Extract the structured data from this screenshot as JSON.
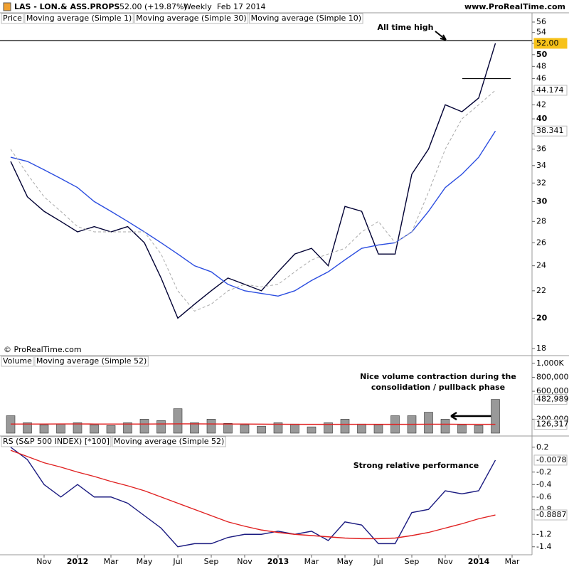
{
  "header": {
    "symbol": "LAS - LON.& ASS.PROPS",
    "quote": "52.00 (+19.87%)",
    "period": "Weekly",
    "date": "Feb 17 2014",
    "site": "www.ProRealTime.com"
  },
  "chart_data": [
    {
      "type": "line",
      "label": "Price",
      "log": true,
      "copyright": "© ProRealTime.com",
      "annotation": "All time high",
      "horizontal_lines": [
        52.5,
        46
      ],
      "ylim": [
        18,
        56
      ],
      "yticks": [
        18,
        20,
        22,
        24,
        26,
        28,
        30,
        32,
        34,
        36,
        38,
        40,
        42,
        44,
        46,
        48,
        50,
        52,
        54,
        56
      ],
      "series": [
        {
          "name": "Moving average (Simple 1)",
          "color": "#000033",
          "label_background": "#f7c21a",
          "values": [
            34.5,
            30.5,
            29,
            28,
            27,
            27.5,
            27,
            27.5,
            26,
            23,
            20,
            21,
            22,
            23,
            22.5,
            22,
            23.5,
            25,
            25.5,
            24,
            29.5,
            29,
            25,
            25,
            33,
            36,
            42,
            41,
            43,
            52,
            null
          ],
          "value_labels": [
            null,
            null,
            null,
            null,
            null,
            null,
            null,
            null,
            null,
            null,
            null,
            null,
            null,
            null,
            null,
            null,
            null,
            null,
            null,
            null,
            null,
            null,
            null,
            null,
            null,
            null,
            null,
            null,
            null,
            "52.00",
            null
          ]
        },
        {
          "name": "Moving average (Simple 30)",
          "color": "#2b4de0",
          "values": [
            35,
            34.5,
            33.5,
            32.5,
            31.5,
            30,
            29,
            28,
            27,
            26,
            25,
            24,
            23.5,
            22.5,
            22,
            21.8,
            21.6,
            22,
            22.8,
            23.5,
            24.5,
            25.5,
            25.8,
            26,
            27,
            29,
            31.5,
            33,
            35,
            38.341,
            null
          ]
        },
        {
          "name": "Moving average (Simple 10)",
          "color": "#aaaaaa",
          "dashed": true,
          "values": [
            36,
            33,
            30.5,
            29,
            27.5,
            27,
            27,
            27,
            27,
            25,
            22,
            20.5,
            21,
            22,
            22.5,
            22.3,
            22.5,
            23.5,
            24.5,
            25,
            25.5,
            27,
            28,
            26,
            27,
            31,
            36,
            40,
            42,
            44.174,
            null
          ]
        }
      ]
    },
    {
      "type": "bar",
      "ylim": [
        0,
        1100000
      ],
      "annotation": [
        "Nice volume contraction during the",
        "consolidation / pullback phase"
      ],
      "yticks": [
        {
          "value": 200000,
          "label": "200,000"
        },
        {
          "value": 600000,
          "label": "600,000"
        },
        {
          "value": 800000,
          "label": "800,000"
        },
        {
          "value": 1000000,
          "label": "1,000K"
        }
      ],
      "series": [
        {
          "name": "Volume",
          "type": "bar",
          "color": "#999999",
          "values": [
            250000,
            150000,
            120000,
            130000,
            150000,
            120000,
            110000,
            150000,
            200000,
            180000,
            350000,
            150000,
            200000,
            140000,
            120000,
            100000,
            150000,
            130000,
            90000,
            150000,
            200000,
            130000,
            120000,
            250000,
            250000,
            300000,
            200000,
            120000,
            110000,
            482989,
            null
          ],
          "value_labels": [
            null,
            null,
            null,
            null,
            null,
            null,
            null,
            null,
            null,
            null,
            null,
            null,
            null,
            null,
            null,
            null,
            null,
            null,
            null,
            null,
            null,
            null,
            null,
            null,
            null,
            null,
            null,
            null,
            null,
            "482,989",
            null
          ]
        },
        {
          "name": "Moving average (Simple 52)",
          "type": "line",
          "color": "#e02020",
          "values": [
            130000,
            130000,
            131000,
            132000,
            132000,
            131000,
            130000,
            130000,
            131000,
            132000,
            133000,
            133000,
            132000,
            131000,
            130000,
            129000,
            128000,
            127000,
            126000,
            126000,
            127000,
            127000,
            126000,
            126000,
            127000,
            128000,
            128000,
            127000,
            126000,
            126317,
            null
          ],
          "value_labels": [
            null,
            null,
            null,
            null,
            null,
            null,
            null,
            null,
            null,
            null,
            null,
            null,
            null,
            null,
            null,
            null,
            null,
            null,
            null,
            null,
            null,
            null,
            null,
            null,
            null,
            null,
            null,
            null,
            null,
            "126,317",
            null
          ]
        }
      ]
    },
    {
      "type": "line",
      "annotation": "Strong relative performance",
      "ylim": [
        -1.5,
        0.3
      ],
      "yticks": [
        -1.4,
        -1.2,
        -0.8,
        -0.6,
        -0.4,
        -0.2,
        0.2
      ],
      "categories": [
        null,
        null,
        "Nov",
        null,
        "2012",
        null,
        "Mar",
        null,
        "May",
        null,
        "Jul",
        null,
        "Sep",
        null,
        "Nov",
        null,
        "2013",
        null,
        "Mar",
        null,
        "May",
        null,
        "Jul",
        null,
        "Sep",
        null,
        "Nov",
        null,
        "2014",
        null,
        "Mar"
      ],
      "series": [
        {
          "name": "RS (S&P 500 INDEX) [*100]",
          "color": "#1a1a80",
          "values": [
            0.2,
            0,
            -0.4,
            -0.6,
            -0.4,
            -0.6,
            -0.6,
            -0.7,
            -0.9,
            -1.1,
            -1.4,
            -1.35,
            -1.35,
            -1.25,
            -1.2,
            -1.2,
            -1.15,
            -1.2,
            -1.15,
            -1.3,
            -1,
            -1.05,
            -1.35,
            -1.35,
            -0.85,
            -0.8,
            -0.5,
            -0.55,
            -0.5,
            -0.0078,
            null
          ]
        },
        {
          "name": "Moving average (Simple 52)",
          "color": "#e02020",
          "values": [
            0.15,
            0.05,
            -0.05,
            -0.12,
            -0.2,
            -0.27,
            -0.35,
            -0.42,
            -0.5,
            -0.6,
            -0.7,
            -0.8,
            -0.9,
            -1,
            -1.07,
            -1.13,
            -1.17,
            -1.2,
            -1.22,
            -1.24,
            -1.26,
            -1.27,
            -1.27,
            -1.26,
            -1.22,
            -1.17,
            -1.1,
            -1.03,
            -0.95,
            -0.8887,
            null
          ]
        }
      ]
    }
  ]
}
